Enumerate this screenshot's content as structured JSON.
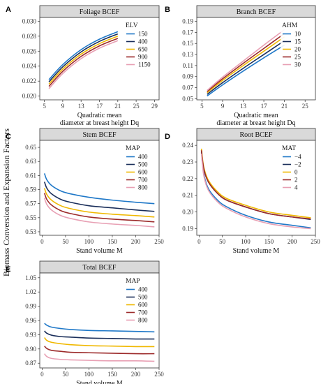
{
  "figure": {
    "y_label": "Biomass Conversion and Expansion Factors"
  },
  "chart_data": [
    {
      "panel": "A",
      "type": "line",
      "title": "Foliage BCEF",
      "xlabel": "Quadratic mean\ndiameter at breast height Dq",
      "ylabel": "",
      "xlim": [
        4,
        30
      ],
      "ylim": [
        0.0195,
        0.0305
      ],
      "xticks": [
        5,
        9,
        13,
        17,
        21,
        25,
        29
      ],
      "yticks": [
        0.02,
        0.022,
        0.024,
        0.026,
        0.028,
        0.03
      ],
      "ytick_labels": [
        "0.020",
        "0.022",
        "0.024",
        "0.026",
        "0.028",
        "0.030"
      ],
      "legend": {
        "title": "ELV",
        "position": "top-right"
      },
      "x": [
        6,
        9,
        13,
        17,
        21
      ],
      "series": [
        {
          "name": "150",
          "color": "#1f78c8",
          "values": [
            0.0222,
            0.0242,
            0.0262,
            0.0276,
            0.0286
          ]
        },
        {
          "name": "400",
          "color": "#1a2e5a",
          "values": [
            0.0219,
            0.0239,
            0.0259,
            0.0273,
            0.0283
          ]
        },
        {
          "name": "650",
          "color": "#f0b800",
          "values": [
            0.0216,
            0.0236,
            0.0256,
            0.027,
            0.028
          ]
        },
        {
          "name": "900",
          "color": "#9c2a2a",
          "values": [
            0.0213,
            0.0233,
            0.0253,
            0.0267,
            0.0277
          ]
        },
        {
          "name": "1150",
          "color": "#e8a0b4",
          "values": [
            0.021,
            0.023,
            0.025,
            0.0264,
            0.0274
          ]
        }
      ]
    },
    {
      "panel": "B",
      "type": "line",
      "title": "Branch BCEF",
      "xlabel": "Quadratic mean\ndiameter at breast height Dq",
      "ylabel": "",
      "xlim": [
        4,
        27
      ],
      "ylim": [
        0.048,
        0.197
      ],
      "xticks": [
        5,
        9,
        13,
        17,
        21,
        25
      ],
      "yticks": [
        0.05,
        0.07,
        0.09,
        0.11,
        0.13,
        0.15,
        0.17,
        0.19
      ],
      "ytick_labels": [
        "0.05",
        "0.07",
        "0.09",
        "0.11",
        "0.13",
        "0.15",
        "0.17",
        "0.19"
      ],
      "legend": {
        "title": "AHM",
        "position": "top-right"
      },
      "x": [
        6,
        9,
        13,
        17,
        21
      ],
      "series": [
        {
          "name": "10",
          "color": "#1f78c8",
          "values": [
            0.055,
            0.075,
            0.1,
            0.124,
            0.147
          ]
        },
        {
          "name": "15",
          "color": "#1a2e5a",
          "values": [
            0.058,
            0.079,
            0.105,
            0.13,
            0.155
          ]
        },
        {
          "name": "20",
          "color": "#f0b800",
          "values": [
            0.061,
            0.083,
            0.11,
            0.136,
            0.162
          ]
        },
        {
          "name": "25",
          "color": "#9c2a2a",
          "values": [
            0.063,
            0.086,
            0.114,
            0.141,
            0.168
          ]
        },
        {
          "name": "30",
          "color": "#e8a0b4",
          "values": [
            0.065,
            0.089,
            0.118,
            0.147,
            0.175
          ]
        }
      ]
    },
    {
      "panel": "C",
      "type": "line",
      "title": "Stem BCEF",
      "xlabel": "Stand volume M",
      "ylabel": "",
      "xlim": [
        -5,
        250
      ],
      "ylim": [
        0.525,
        0.66
      ],
      "xticks": [
        0,
        50,
        100,
        150,
        200,
        250
      ],
      "yticks": [
        0.53,
        0.55,
        0.57,
        0.59,
        0.61,
        0.63,
        0.65
      ],
      "ytick_labels": [
        "0.53",
        "0.55",
        "0.57",
        "0.59",
        "0.61",
        "0.63",
        "0.65"
      ],
      "legend": {
        "title": "MAP",
        "position": "top-right"
      },
      "x": [
        5,
        10,
        20,
        40,
        60,
        100,
        150,
        200,
        240
      ],
      "series": [
        {
          "name": "400",
          "color": "#1f78c8",
          "values": [
            0.613,
            0.604,
            0.596,
            0.588,
            0.584,
            0.579,
            0.575,
            0.572,
            0.57
          ]
        },
        {
          "name": "500",
          "color": "#1a2e5a",
          "values": [
            0.601,
            0.592,
            0.584,
            0.576,
            0.572,
            0.567,
            0.564,
            0.561,
            0.559
          ]
        },
        {
          "name": "600",
          "color": "#f0b800",
          "values": [
            0.592,
            0.583,
            0.575,
            0.567,
            0.563,
            0.558,
            0.555,
            0.553,
            0.551
          ]
        },
        {
          "name": "700",
          "color": "#9c2a2a",
          "values": [
            0.585,
            0.576,
            0.568,
            0.56,
            0.556,
            0.551,
            0.548,
            0.546,
            0.544
          ]
        },
        {
          "name": "800",
          "color": "#e8a0b4",
          "values": [
            0.578,
            0.569,
            0.561,
            0.553,
            0.549,
            0.544,
            0.541,
            0.539,
            0.537
          ]
        }
      ]
    },
    {
      "panel": "D",
      "type": "line",
      "title": "Root BCEF",
      "xlabel": "Stand volume M",
      "ylabel": "",
      "xlim": [
        -5,
        250
      ],
      "ylim": [
        0.186,
        0.243
      ],
      "xticks": [
        0,
        50,
        100,
        150,
        200,
        250
      ],
      "yticks": [
        0.19,
        0.2,
        0.21,
        0.22,
        0.23,
        0.24
      ],
      "ytick_labels": [
        "0.19",
        "0.20",
        "0.21",
        "0.22",
        "0.23",
        "0.24"
      ],
      "legend": {
        "title": "MAT",
        "position": "top-right"
      },
      "x": [
        5,
        10,
        20,
        40,
        60,
        100,
        150,
        200,
        240
      ],
      "series": [
        {
          "name": "−4",
          "color": "#1f78c8",
          "values": [
            0.236,
            0.223,
            0.214,
            0.207,
            0.203,
            0.198,
            0.194,
            0.192,
            0.1905
          ]
        },
        {
          "name": "−2",
          "color": "#1a2e5a",
          "values": [
            0.237,
            0.226,
            0.218,
            0.211,
            0.207,
            0.203,
            0.199,
            0.197,
            0.1955
          ]
        },
        {
          "name": "0",
          "color": "#f0b800",
          "values": [
            0.238,
            0.227,
            0.219,
            0.212,
            0.208,
            0.204,
            0.2,
            0.198,
            0.1965
          ]
        },
        {
          "name": "2",
          "color": "#9c2a2a",
          "values": [
            0.237,
            0.226,
            0.218,
            0.211,
            0.207,
            0.203,
            0.199,
            0.197,
            0.1958
          ]
        },
        {
          "name": "4",
          "color": "#e8a0b4",
          "values": [
            0.235,
            0.222,
            0.213,
            0.206,
            0.202,
            0.197,
            0.193,
            0.191,
            0.19
          ]
        }
      ]
    },
    {
      "panel": "E",
      "type": "line",
      "title": "Total BCEF",
      "xlabel": "Stand volume M",
      "ylabel": "",
      "xlim": [
        -5,
        250
      ],
      "ylim": [
        0.86,
        1.06
      ],
      "xticks": [
        0,
        50,
        100,
        150,
        200,
        250
      ],
      "yticks": [
        0.87,
        0.9,
        0.93,
        0.96,
        0.99,
        1.02,
        1.05
      ],
      "ytick_labels": [
        "0.87",
        "0.90",
        "0.93",
        "0.96",
        "0.99",
        "1.02",
        "1.05"
      ],
      "legend": {
        "title": "MAP",
        "position": "top-right"
      },
      "x": [
        5,
        10,
        20,
        40,
        60,
        100,
        150,
        200,
        240
      ],
      "series": [
        {
          "name": "400",
          "color": "#1f78c8",
          "values": [
            0.954,
            0.95,
            0.946,
            0.943,
            0.941,
            0.939,
            0.938,
            0.937,
            0.936
          ]
        },
        {
          "name": "500",
          "color": "#1a2e5a",
          "values": [
            0.938,
            0.933,
            0.929,
            0.926,
            0.925,
            0.923,
            0.922,
            0.921,
            0.921
          ]
        },
        {
          "name": "600",
          "color": "#f0b800",
          "values": [
            0.924,
            0.918,
            0.914,
            0.911,
            0.909,
            0.907,
            0.906,
            0.905,
            0.905
          ]
        },
        {
          "name": "700",
          "color": "#9c2a2a",
          "values": [
            0.906,
            0.901,
            0.897,
            0.895,
            0.893,
            0.892,
            0.891,
            0.89,
            0.89
          ]
        },
        {
          "name": "800",
          "color": "#e8a0b4",
          "values": [
            0.89,
            0.884,
            0.88,
            0.878,
            0.877,
            0.876,
            0.875,
            0.875,
            0.874
          ]
        }
      ]
    }
  ]
}
